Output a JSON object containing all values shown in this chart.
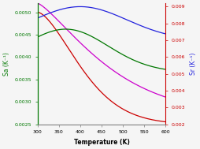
{
  "T_min": 300,
  "T_max": 600,
  "xlabel": "Temperature (K)",
  "ylabel_left": "Sa (K⁻¹)",
  "ylabel_right": "Sr (K⁻¹)",
  "ylim_left": [
    0.0025,
    0.0052
  ],
  "ylim_right": [
    0.002,
    0.0092
  ],
  "yticks_left": [
    0.0025,
    0.003,
    0.0035,
    0.004,
    0.0045,
    0.005
  ],
  "yticks_right": [
    0.002,
    0.003,
    0.004,
    0.005,
    0.006,
    0.007,
    0.008,
    0.009
  ],
  "xticks": [
    300,
    350,
    400,
    450,
    500,
    550,
    600
  ],
  "colors": {
    "blue": "#2222dd",
    "green": "#007700",
    "red": "#cc0000",
    "magenta": "#cc00cc"
  },
  "background_color": "#f5f5f5",
  "left_axis_color": "#007700",
  "right_axis_color": "#cc0000",
  "right_tick_label_color": "#cc0000",
  "left_tick_label_color": "#007700"
}
